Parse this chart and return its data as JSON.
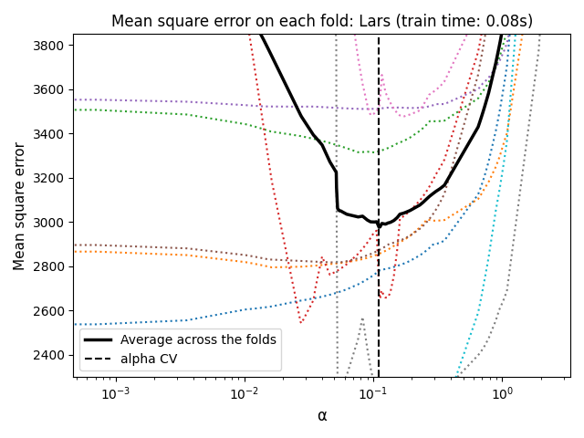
{
  "title": "Mean square error on each fold: Lars (train time: 0.08s)",
  "xlabel": "α",
  "ylabel": "Mean square error",
  "ylim": [
    2300,
    3850
  ],
  "legend_avg": "Average across the folds",
  "legend_cv": "alpha CV",
  "fold_colors": [
    "#1f77b4",
    "#ff7f0e",
    "#2ca02c",
    "#d62728",
    "#9467bd",
    "#8c564b",
    "#e377c2",
    "#7f7f7f",
    "#bcbd22",
    "#17becf",
    "#aec7e8",
    "#ffbb78",
    "#98df8a",
    "#ff9896",
    "#c5b0d5",
    "#c49c94",
    "#f7b6d2",
    "#c7c7c7",
    "#dbdb8d",
    "#9edae5"
  ]
}
